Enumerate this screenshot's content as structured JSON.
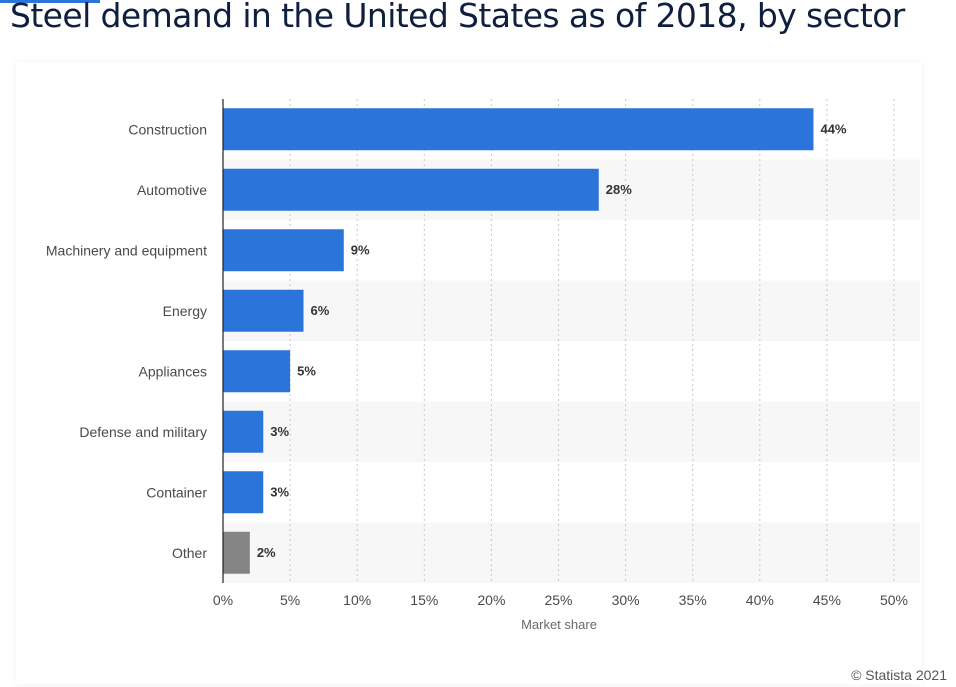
{
  "page": {
    "title": "Steel demand in the United States as of 2018, by sector",
    "credit": "© Statista 2021"
  },
  "colors": {
    "bar": "#2b74d9",
    "bar_other": "#848484",
    "band": "#f7f7f7",
    "title": "#0f1f3d"
  },
  "chart_data": {
    "type": "bar",
    "orientation": "horizontal",
    "title": "",
    "xlabel": "Market share",
    "ylabel": "",
    "categories": [
      "Construction",
      "Automotive",
      "Machinery and equipment",
      "Energy",
      "Appliances",
      "Defense and military",
      "Container",
      "Other"
    ],
    "values": [
      44,
      28,
      9,
      6,
      5,
      3,
      3,
      2
    ],
    "value_labels": [
      "44%",
      "28%",
      "9%",
      "6%",
      "5%",
      "3%",
      "3%",
      "2%"
    ],
    "xlim": [
      0,
      50
    ],
    "x_ticks": [
      0,
      5,
      10,
      15,
      20,
      25,
      30,
      35,
      40,
      45,
      50
    ],
    "x_tick_labels": [
      "0%",
      "5%",
      "10%",
      "15%",
      "20%",
      "25%",
      "30%",
      "35%",
      "40%",
      "45%",
      "50%"
    ],
    "grid": "vertical dotted",
    "legend": "none"
  }
}
